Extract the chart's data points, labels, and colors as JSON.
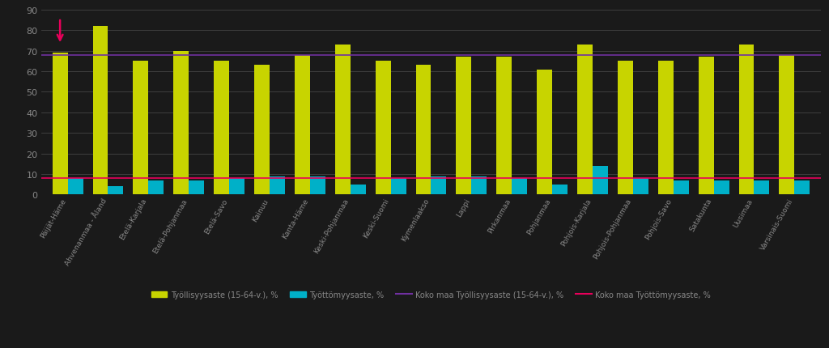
{
  "categories": [
    "Päijät-Häme",
    "Ahvenanmaa - Åland",
    "Etelä-Karjala",
    "Etelä-Pohjanmaa",
    "Etelä-Savo",
    "Kainuu",
    "Kanta-Häme",
    "Keski-Pohjanmaa",
    "Keski-Suomi",
    "Kymenlaakso",
    "Lappi",
    "Pirkanmaa",
    "Pohjanmaa",
    "Pohjois-Karjala",
    "Pohjois-Pohjanmaa",
    "Pohjois-Savo",
    "Satakunta",
    "Uusimaa",
    "Varsinais-Suomi"
  ],
  "employment_rate": [
    69,
    82,
    65,
    70,
    65,
    63,
    68,
    73,
    65,
    63,
    67,
    67,
    61,
    73,
    65,
    65,
    67,
    73,
    68
  ],
  "unemployment_rate": [
    8,
    4,
    7,
    7,
    8,
    9,
    9,
    5,
    8,
    9,
    9,
    8,
    5,
    14,
    8,
    7,
    7,
    7,
    7
  ],
  "national_employment": 68,
  "national_unemployment": 8,
  "employment_color": "#c8d400",
  "unemployment_color": "#00b0c8",
  "national_emp_color": "#7030a0",
  "national_unemp_color": "#e8005a",
  "arrow_color": "#e8005a",
  "background_color": "#1a1a1a",
  "plot_bg_color": "#0d0d0d",
  "text_color": "#888888",
  "grid_color": "#444444",
  "ylim": [
    0,
    90
  ],
  "yticks": [
    0,
    10,
    20,
    30,
    40,
    50,
    60,
    70,
    80,
    90
  ]
}
